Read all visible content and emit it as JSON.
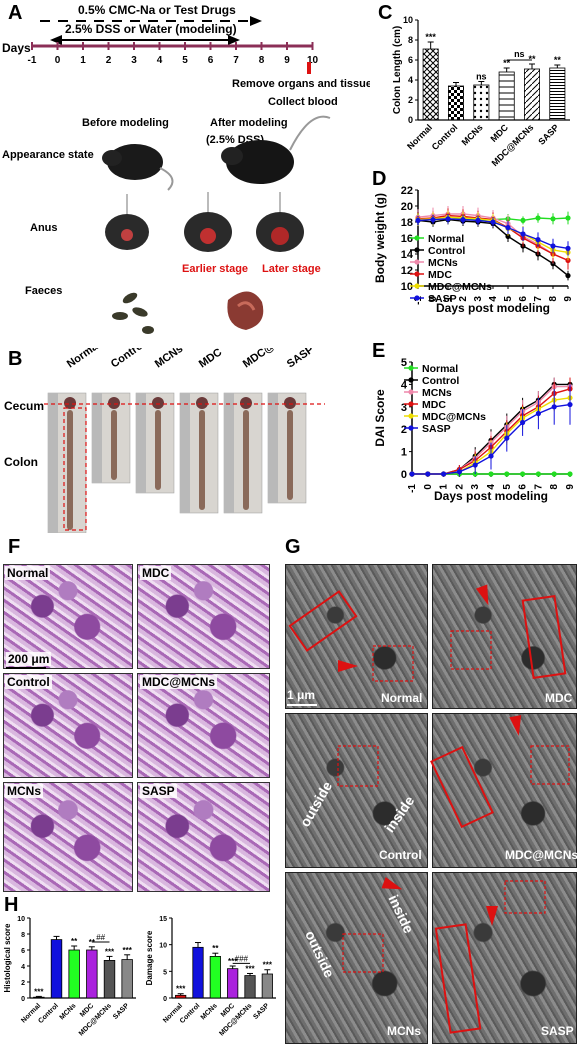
{
  "panelA": {
    "label": "A",
    "top_line": "0.5% CMC-Na or Test Drugs",
    "mid_line": "2.5% DSS or Water (modeling)",
    "days_label": "Days",
    "days": [
      "-1",
      "0",
      "1",
      "2",
      "3",
      "4",
      "5",
      "6",
      "7",
      "8",
      "9",
      "10"
    ],
    "remove_text": "Remove organs and tissues",
    "collect_text": "Collect blood",
    "before": "Before modeling",
    "after": "After modeling",
    "after2": "(2.5% DSS)",
    "row1": "Appearance state",
    "row2": "Anus",
    "row3": "Faeces",
    "earlier": "Earlier stage",
    "later": "Later stage"
  },
  "panelB": {
    "label": "B",
    "groups": [
      "Normal",
      "Control",
      "MCNs",
      "MDC",
      "MDC@MCNs",
      "SASP"
    ],
    "cecum": "Cecum",
    "colon": "Colon"
  },
  "panelF": {
    "label": "F",
    "tiles": [
      "Normal",
      "MDC",
      "Control",
      "MDC@MCNs",
      "MCNs",
      "SASP"
    ],
    "scale": "200 μm"
  },
  "panelG": {
    "label": "G",
    "tiles": [
      "Normal",
      "MDC",
      "Control",
      "MDC@MCNs",
      "MCNs",
      "SASP"
    ],
    "scale": "1 μm",
    "outside": "outside",
    "inside": "inside"
  },
  "chart_data": [
    {
      "panel": "C",
      "type": "bar",
      "categories": [
        "Normal",
        "Control",
        "MCNs",
        "MDC",
        "MDC@MCNs",
        "SASP"
      ],
      "values": [
        7.1,
        3.4,
        3.5,
        4.8,
        5.1,
        5.2
      ],
      "errors": [
        0.7,
        0.35,
        0.35,
        0.4,
        0.5,
        0.3
      ],
      "sig": [
        "***",
        "",
        "ns",
        "**",
        "**",
        "**"
      ],
      "bracket": "ns",
      "ylabel": "Colon Length (cm)",
      "ylim": [
        0,
        10
      ],
      "yticks": [
        0,
        2,
        4,
        6,
        8,
        10
      ]
    },
    {
      "panel": "D",
      "type": "line",
      "x": [
        -1,
        0,
        1,
        2,
        3,
        4,
        5,
        6,
        7,
        8,
        9
      ],
      "xlabel": "Days post modeling",
      "ylabel": "Body weight (g)",
      "ylim": [
        10,
        22
      ],
      "yticks": [
        10,
        12,
        14,
        16,
        18,
        20,
        22
      ],
      "legend": "bottom-left",
      "series": [
        {
          "name": "Normal",
          "color": "#22dd22",
          "values": [
            18.2,
            18.4,
            18.3,
            18.5,
            18.2,
            18.3,
            18.4,
            18.2,
            18.5,
            18.4,
            18.5
          ],
          "err": [
            0.6,
            0.6,
            0.5,
            0.6,
            0.6,
            0.5,
            0.6,
            0.5,
            0.6,
            0.7,
            0.8
          ]
        },
        {
          "name": "Control",
          "color": "#000000",
          "values": [
            18.2,
            18.0,
            18.3,
            18.1,
            18.0,
            17.8,
            16.2,
            15.0,
            14.0,
            12.8,
            11.3
          ],
          "err": [
            0.6,
            0.6,
            0.6,
            0.6,
            0.6,
            0.6,
            0.7,
            0.8,
            0.8,
            0.7,
            0.6
          ]
        },
        {
          "name": "MCNs",
          "color": "#ee88aa",
          "values": [
            18.6,
            18.8,
            19.0,
            19.0,
            18.8,
            18.5,
            17.8,
            16.2,
            15.2,
            14.0,
            13.2
          ],
          "err": [
            1.0,
            1.0,
            1.0,
            1.0,
            1.0,
            1.0,
            1.1,
            1.2,
            1.3,
            1.2,
            1.2
          ]
        },
        {
          "name": "MDC",
          "color": "#dd1111",
          "values": [
            18.4,
            18.5,
            18.8,
            18.7,
            18.5,
            18.3,
            17.3,
            16.0,
            15.0,
            14.0,
            13.2
          ],
          "err": [
            0.8,
            0.8,
            0.9,
            0.9,
            0.9,
            0.9,
            1.0,
            1.1,
            1.1,
            1.1,
            1.1
          ]
        },
        {
          "name": "MDC@MCNs",
          "color": "#eedd00",
          "values": [
            18.3,
            18.4,
            18.6,
            18.5,
            18.4,
            18.2,
            17.2,
            16.5,
            15.5,
            14.5,
            14.2
          ],
          "err": [
            0.8,
            0.8,
            0.8,
            0.8,
            0.8,
            0.8,
            0.9,
            1.0,
            1.0,
            1.0,
            1.0
          ]
        },
        {
          "name": "SASP",
          "color": "#1111dd",
          "values": [
            18.2,
            18.3,
            18.4,
            18.3,
            18.2,
            18.0,
            17.3,
            16.5,
            15.8,
            15.0,
            14.7
          ],
          "err": [
            0.6,
            0.6,
            0.6,
            0.6,
            0.6,
            0.6,
            0.8,
            0.9,
            0.9,
            0.9,
            0.9
          ]
        }
      ]
    },
    {
      "panel": "E",
      "type": "line",
      "x": [
        -1,
        0,
        1,
        2,
        3,
        4,
        5,
        6,
        7,
        8,
        9
      ],
      "xlabel": "Days post modeling",
      "ylabel": "DAI Score",
      "ylim": [
        0,
        5
      ],
      "yticks": [
        0,
        1,
        2,
        3,
        4,
        5
      ],
      "legend": "top-left",
      "series": [
        {
          "name": "Normal",
          "color": "#22dd22",
          "values": [
            0,
            0,
            0,
            0,
            0,
            0,
            0,
            0,
            0,
            0,
            0
          ],
          "err": [
            0,
            0,
            0,
            0,
            0,
            0,
            0,
            0,
            0,
            0,
            0
          ]
        },
        {
          "name": "Control",
          "color": "#000000",
          "values": [
            0,
            0,
            0,
            0.2,
            0.8,
            1.5,
            2.2,
            2.9,
            3.3,
            4.0,
            4.0
          ],
          "err": [
            0,
            0,
            0,
            0.2,
            0.4,
            0.5,
            0.5,
            0.5,
            0.4,
            0.3,
            0.3
          ]
        },
        {
          "name": "MCNs",
          "color": "#ee88aa",
          "values": [
            0,
            0,
            0,
            0.2,
            0.7,
            1.4,
            2.1,
            2.8,
            3.2,
            3.9,
            3.9
          ],
          "err": [
            0,
            0,
            0,
            0.2,
            0.4,
            0.5,
            0.5,
            0.5,
            0.5,
            0.4,
            0.4
          ]
        },
        {
          "name": "MDC",
          "color": "#dd1111",
          "values": [
            0,
            0,
            0,
            0.2,
            0.6,
            1.2,
            1.9,
            2.6,
            3.0,
            3.6,
            3.8
          ],
          "err": [
            0,
            0,
            0,
            0.2,
            0.4,
            0.5,
            0.5,
            0.5,
            0.5,
            0.5,
            0.5
          ]
        },
        {
          "name": "MDC@MCNs",
          "color": "#eedd00",
          "values": [
            0,
            0,
            0,
            0.1,
            0.5,
            1.0,
            1.8,
            2.5,
            2.9,
            3.3,
            3.4
          ],
          "err": [
            0,
            0,
            0,
            0.2,
            0.4,
            0.5,
            0.5,
            0.5,
            0.5,
            0.5,
            0.5
          ]
        },
        {
          "name": "SASP",
          "color": "#1111dd",
          "values": [
            0,
            0,
            0,
            0.1,
            0.4,
            0.8,
            1.6,
            2.3,
            2.7,
            3.0,
            3.1
          ],
          "err": [
            0,
            0,
            0,
            0.2,
            0.4,
            0.6,
            0.6,
            0.6,
            0.7,
            0.8,
            0.9
          ]
        }
      ]
    },
    {
      "panel": "H-left",
      "type": "bar",
      "categories": [
        "Normal",
        "Control",
        "MCNs",
        "MDC",
        "MDC@MCNs",
        "SASP"
      ],
      "values": [
        0.1,
        7.3,
        6.0,
        6.0,
        4.7,
        4.8
      ],
      "errors": [
        0.1,
        0.4,
        0.5,
        0.4,
        0.5,
        0.6
      ],
      "colors": [
        "#dd1111",
        "#1111dd",
        "#22ff22",
        "#aa22dd",
        "#555555",
        "#888888"
      ],
      "sig": [
        "***",
        "",
        "**",
        "**",
        "***",
        "***"
      ],
      "bracket": "##",
      "ylabel": "Histological score",
      "ylim": [
        0,
        10
      ],
      "yticks": [
        0,
        2,
        4,
        6,
        8,
        10
      ]
    },
    {
      "panel": "H-right",
      "type": "bar",
      "categories": [
        "Normal",
        "Control",
        "MCNs",
        "MDC",
        "MDC@MCNs",
        "SASP"
      ],
      "values": [
        0.5,
        9.5,
        7.8,
        5.5,
        4.2,
        4.5
      ],
      "errors": [
        0.3,
        0.9,
        0.6,
        0.5,
        0.4,
        0.8
      ],
      "colors": [
        "#dd1111",
        "#1111dd",
        "#22ff22",
        "#aa22dd",
        "#555555",
        "#888888"
      ],
      "sig": [
        "***",
        "",
        "**",
        "***",
        "***",
        "***"
      ],
      "bracket": "###",
      "ylabel": "Damage score",
      "ylim": [
        0,
        15
      ],
      "yticks": [
        0,
        5,
        10,
        15
      ]
    }
  ]
}
